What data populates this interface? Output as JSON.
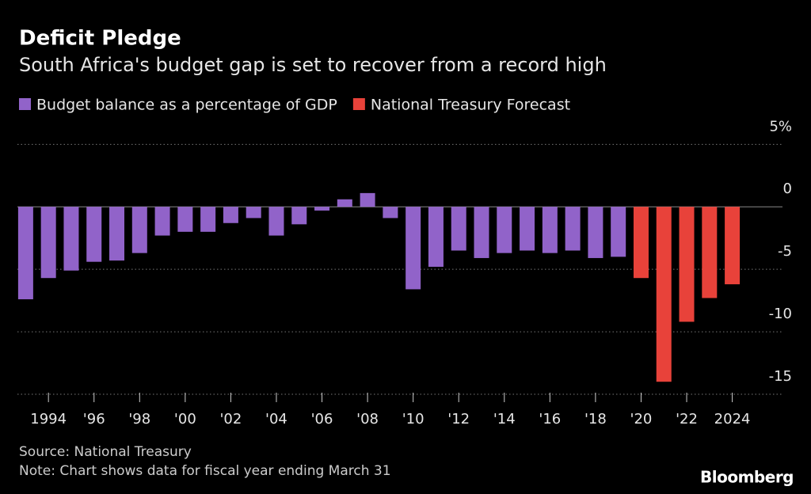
{
  "chart_data": {
    "type": "bar",
    "title": "Deficit Pledge",
    "subtitle": "South Africa's budget gap is set to recover from a record high",
    "source": "Source: National Treasury",
    "note": "Note: Chart shows data for fiscal year ending March 31",
    "brand": "Bloomberg",
    "x": [
      1993,
      1994,
      1995,
      1996,
      1997,
      1998,
      1999,
      2000,
      2001,
      2002,
      2003,
      2004,
      2005,
      2006,
      2007,
      2008,
      2009,
      2010,
      2011,
      2012,
      2013,
      2014,
      2015,
      2016,
      2017,
      2018,
      2019,
      2020,
      2021,
      2022,
      2023,
      2024
    ],
    "series": [
      {
        "name": "Budget balance as a percentage of GDP",
        "color": "#9163c9",
        "values": [
          -7.4,
          -5.7,
          -5.1,
          -4.4,
          -4.3,
          -3.7,
          -2.3,
          -2.0,
          -2.0,
          -1.3,
          -0.9,
          -2.3,
          -1.4,
          -0.3,
          0.6,
          1.1,
          -0.9,
          -6.6,
          -4.8,
          -3.5,
          -4.1,
          -3.7,
          -3.5,
          -3.7,
          -3.5,
          -4.1,
          -4.0,
          null,
          null,
          null,
          null,
          null
        ]
      },
      {
        "name": "National Treasury Forecast",
        "color": "#e8423a",
        "values": [
          null,
          null,
          null,
          null,
          null,
          null,
          null,
          null,
          null,
          null,
          null,
          null,
          null,
          null,
          null,
          null,
          null,
          null,
          null,
          null,
          null,
          null,
          null,
          null,
          null,
          null,
          null,
          -5.7,
          -14.0,
          -9.2,
          -7.3,
          -6.2
        ]
      }
    ],
    "xlim": [
      1992.5,
      2025.3
    ],
    "xticks": [
      {
        "value": 1994,
        "label": "1994"
      },
      {
        "value": 1996,
        "label": "'96"
      },
      {
        "value": 1998,
        "label": "'98"
      },
      {
        "value": 2000,
        "label": "'00"
      },
      {
        "value": 2002,
        "label": "'02"
      },
      {
        "value": 2004,
        "label": "'04"
      },
      {
        "value": 2006,
        "label": "'06"
      },
      {
        "value": 2008,
        "label": "'08"
      },
      {
        "value": 2010,
        "label": "'10"
      },
      {
        "value": 2012,
        "label": "'12"
      },
      {
        "value": 2014,
        "label": "'14"
      },
      {
        "value": 2016,
        "label": "'16"
      },
      {
        "value": 2018,
        "label": "'18"
      },
      {
        "value": 2020,
        "label": "'20"
      },
      {
        "value": 2022,
        "label": "'22"
      },
      {
        "value": 2024,
        "label": "2024"
      }
    ],
    "ylim": [
      -15,
      5.4
    ],
    "yticks": [
      {
        "value": 5,
        "label": "5%"
      },
      0,
      -5,
      -10,
      -15
    ],
    "grid": true
  }
}
